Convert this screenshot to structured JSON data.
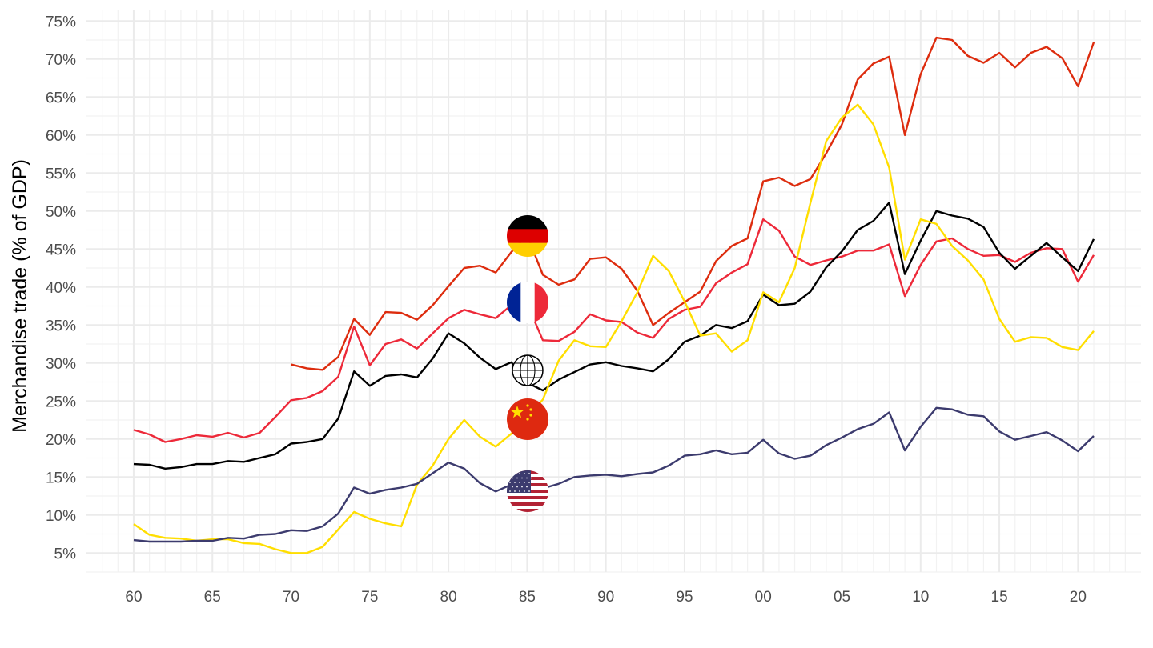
{
  "chart_data": {
    "type": "line",
    "title": "",
    "xlabel": "",
    "ylabel": "Merchandise trade (% of GDP)",
    "xlim": [
      1957,
      2024
    ],
    "ylim": [
      2.5,
      76.5
    ],
    "grid": true,
    "legend": "none",
    "x_ticks": [
      1960,
      1965,
      1970,
      1975,
      1980,
      1985,
      1990,
      1995,
      2000,
      2005,
      2010,
      2015,
      2020
    ],
    "x_tick_labels": [
      "60",
      "65",
      "70",
      "75",
      "80",
      "85",
      "90",
      "95",
      "00",
      "05",
      "10",
      "15",
      "20"
    ],
    "y_ticks": [
      5,
      10,
      15,
      20,
      25,
      30,
      35,
      40,
      45,
      50,
      55,
      60,
      65,
      70,
      75
    ],
    "y_tick_labels": [
      "5%",
      "10%",
      "15%",
      "20%",
      "25%",
      "30%",
      "35%",
      "40%",
      "45%",
      "50%",
      "55%",
      "60%",
      "65%",
      "70%",
      "75%"
    ],
    "series": [
      {
        "color": "#dd2c0e",
        "icon": "germany-flag-icon",
        "start": 1970,
        "values": [
          29.8,
          29.3,
          29.1,
          30.8,
          35.8,
          33.7,
          36.7,
          36.6,
          35.7,
          37.6,
          40.1,
          42.5,
          42.8,
          41.9,
          44.6,
          46.8,
          41.6,
          40.3,
          41.0,
          43.7,
          43.9,
          42.4,
          39.5,
          35.0,
          36.6,
          38.0,
          39.4,
          43.4,
          45.4,
          46.4,
          53.9,
          54.4,
          53.3,
          54.2,
          57.6,
          61.4,
          67.3,
          69.4,
          70.3,
          60.0,
          68.0,
          72.8,
          72.5,
          70.4,
          69.5,
          70.8,
          68.9,
          70.8,
          71.6,
          70.1,
          66.4,
          72.2
        ]
      },
      {
        "color": "#ed2939",
        "icon": "france-flag-icon",
        "start": 1960,
        "values": [
          21.2,
          20.6,
          19.6,
          20.0,
          20.5,
          20.3,
          20.8,
          20.2,
          20.8,
          22.9,
          25.1,
          25.4,
          26.3,
          28.2,
          34.8,
          29.7,
          32.5,
          33.1,
          31.9,
          33.9,
          35.9,
          37.0,
          36.4,
          35.9,
          37.6,
          37.8,
          33.0,
          32.9,
          34.1,
          36.4,
          35.6,
          35.4,
          34.0,
          33.3,
          35.8,
          37.0,
          37.4,
          40.5,
          41.9,
          43.0,
          48.9,
          47.4,
          44.0,
          42.9,
          43.5,
          44.0,
          44.8,
          44.8,
          45.6,
          38.8,
          42.9,
          46.0,
          46.4,
          45.0,
          44.1,
          44.2,
          43.3,
          44.5,
          45.1,
          45.0,
          40.7,
          44.2
        ]
      },
      {
        "color": "#000000",
        "icon": "world-globe-icon",
        "start": 1960,
        "values": [
          16.7,
          16.6,
          16.1,
          16.3,
          16.7,
          16.7,
          17.1,
          17.0,
          17.5,
          18.0,
          19.4,
          19.6,
          20.0,
          22.7,
          28.9,
          27.0,
          28.3,
          28.5,
          28.1,
          30.6,
          33.9,
          32.6,
          30.7,
          29.2,
          30.1,
          27.4,
          26.4,
          27.8,
          28.8,
          29.8,
          30.1,
          29.6,
          29.3,
          28.9,
          30.5,
          32.8,
          33.6,
          35.0,
          34.6,
          35.5,
          39.0,
          37.6,
          37.8,
          39.4,
          42.6,
          44.7,
          47.5,
          48.7,
          51.1,
          41.7,
          46.1,
          50.0,
          49.4,
          49.0,
          47.9,
          44.5,
          42.4,
          44.1,
          45.8,
          43.9,
          42.1,
          46.3
        ]
      },
      {
        "color": "#ffde00",
        "icon": "china-flag-icon",
        "start": 1960,
        "values": [
          8.8,
          7.4,
          7.0,
          6.9,
          6.6,
          6.8,
          6.8,
          6.3,
          6.2,
          5.5,
          5.0,
          5.0,
          5.8,
          8.1,
          10.4,
          9.5,
          8.9,
          8.5,
          14.0,
          16.5,
          20.0,
          22.5,
          20.3,
          19.0,
          20.7,
          22.8,
          25.2,
          30.3,
          33.0,
          32.2,
          32.1,
          35.5,
          39.3,
          44.1,
          42.1,
          38.1,
          33.6,
          33.9,
          31.5,
          33.0,
          39.3,
          38.0,
          42.5,
          51.1,
          59.2,
          62.3,
          64.0,
          61.4,
          55.7,
          43.6,
          48.9,
          48.3,
          45.4,
          43.5,
          41.0,
          35.8,
          32.8,
          33.4,
          33.3,
          32.1,
          31.7,
          34.2
        ]
      },
      {
        "color": "#3c3b6e",
        "icon": "usa-flag-icon",
        "start": 1960,
        "values": [
          6.7,
          6.5,
          6.5,
          6.5,
          6.6,
          6.6,
          7.0,
          6.9,
          7.4,
          7.5,
          8.0,
          7.9,
          8.5,
          10.2,
          13.6,
          12.8,
          13.3,
          13.6,
          14.1,
          15.5,
          16.9,
          16.1,
          14.2,
          13.1,
          14.0,
          13.1,
          13.5,
          14.1,
          15.0,
          15.2,
          15.3,
          15.1,
          15.4,
          15.6,
          16.5,
          17.8,
          18.0,
          18.5,
          18.0,
          18.2,
          19.9,
          18.1,
          17.4,
          17.8,
          19.2,
          20.2,
          21.3,
          22.0,
          23.5,
          18.5,
          21.6,
          24.1,
          23.9,
          23.2,
          23.0,
          21.0,
          19.9,
          20.4,
          20.9,
          19.8,
          18.4,
          20.4
        ]
      }
    ]
  }
}
